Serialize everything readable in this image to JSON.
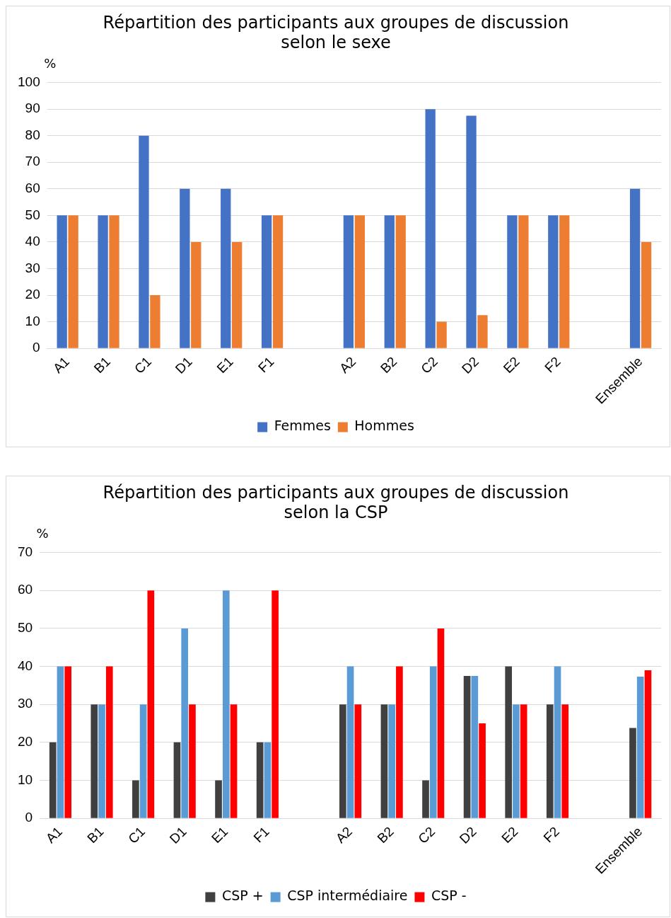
{
  "chart_data": [
    {
      "type": "bar",
      "title": [
        "Répartition des participants aux groupes de discussion",
        "selon le sexe"
      ],
      "ylabel": "%",
      "categories": [
        "A1",
        "B1",
        "C1",
        "D1",
        "E1",
        "F1",
        null,
        "A2",
        "B2",
        "C2",
        "D2",
        "E2",
        "F2",
        null,
        "Ensemble"
      ],
      "series": [
        {
          "name": "Femmes",
          "color": "#4472c4",
          "values": [
            50,
            50,
            80,
            60,
            60,
            50,
            null,
            50,
            50,
            90,
            87.5,
            50,
            50,
            null,
            60
          ]
        },
        {
          "name": "Hommes",
          "color": "#ed7d31",
          "values": [
            50,
            50,
            20,
            40,
            40,
            50,
            null,
            50,
            50,
            10,
            12.5,
            50,
            50,
            null,
            40
          ]
        }
      ],
      "ylim": [
        0,
        100
      ],
      "yticks": [
        0,
        10,
        20,
        30,
        40,
        50,
        60,
        70,
        80,
        90,
        100
      ],
      "grid": "y",
      "legend": "bottom"
    },
    {
      "type": "bar",
      "title": [
        "Répartition des participants aux groupes de discussion",
        "selon la CSP"
      ],
      "ylabel": "%",
      "categories": [
        "A1",
        "B1",
        "C1",
        "D1",
        "E1",
        "F1",
        null,
        "A2",
        "B2",
        "C2",
        "D2",
        "E2",
        "F2",
        null,
        "Ensemble"
      ],
      "series": [
        {
          "name": "CSP +",
          "color": "#404040",
          "values": [
            20,
            30,
            10,
            20,
            10,
            20,
            null,
            30,
            30,
            10,
            37.5,
            40,
            30,
            null,
            23.8
          ]
        },
        {
          "name": "CSP intermédiaire",
          "color": "#5b9bd5",
          "values": [
            40,
            30,
            30,
            50,
            60,
            20,
            null,
            40,
            30,
            40,
            37.5,
            30,
            40,
            null,
            37.3
          ]
        },
        {
          "name": "CSP -",
          "color": "#ff0000",
          "values": [
            40,
            40,
            60,
            30,
            30,
            60,
            null,
            30,
            40,
            50,
            25,
            30,
            30,
            null,
            39
          ]
        }
      ],
      "ylim": [
        0,
        70
      ],
      "yticks": [
        0,
        10,
        20,
        30,
        40,
        50,
        60,
        70
      ],
      "grid": "y",
      "legend": "bottom"
    }
  ]
}
